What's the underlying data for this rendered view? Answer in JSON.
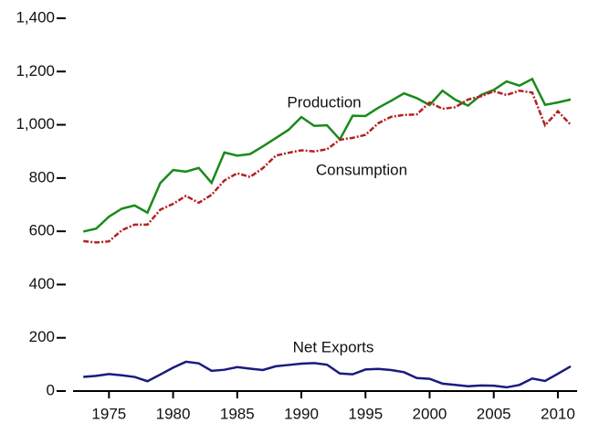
{
  "chart_data": {
    "type": "line",
    "x": [
      1973,
      1974,
      1975,
      1976,
      1977,
      1978,
      1979,
      1980,
      1981,
      1982,
      1983,
      1984,
      1985,
      1986,
      1987,
      1988,
      1989,
      1990,
      1991,
      1992,
      1993,
      1994,
      1995,
      1996,
      1997,
      1998,
      1999,
      2000,
      2001,
      2002,
      2003,
      2004,
      2005,
      2006,
      2007,
      2008,
      2009,
      2010,
      2011
    ],
    "series": [
      {
        "name": "Production",
        "color": "#1a8a1a",
        "dashed": false,
        "values": [
          599,
          610,
          655,
          685,
          697,
          670,
          781,
          830,
          824,
          838,
          782,
          896,
          884,
          890,
          919,
          950,
          981,
          1029,
          996,
          998,
          945,
          1034,
          1033,
          1064,
          1090,
          1118,
          1100,
          1074,
          1128,
          1094,
          1072,
          1112,
          1131,
          1163,
          1147,
          1172,
          1075,
          1084,
          1095
        ]
      },
      {
        "name": "Consumption",
        "color": "#b22222",
        "dashed": true,
        "values": [
          563,
          558,
          562,
          604,
          625,
          625,
          681,
          703,
          733,
          707,
          737,
          791,
          818,
          804,
          837,
          884,
          895,
          904,
          900,
          908,
          944,
          951,
          962,
          1006,
          1030,
          1037,
          1039,
          1084,
          1060,
          1066,
          1095,
          1107,
          1126,
          1112,
          1128,
          1121,
          998,
          1051,
          1000
        ]
      },
      {
        "name": "Net Exports",
        "color": "#1a1a80",
        "dashed": false,
        "values": [
          53,
          57,
          64,
          59,
          53,
          37,
          62,
          88,
          110,
          104,
          76,
          80,
          90,
          84,
          79,
          93,
          98,
          103,
          105,
          99,
          66,
          63,
          81,
          83,
          79,
          71,
          49,
          46,
          28,
          23,
          18,
          21,
          20,
          14,
          23,
          47,
          38,
          65,
          93
        ]
      }
    ],
    "xlim": [
      1972.2,
      2011.5
    ],
    "xticks": [
      1975,
      1980,
      1985,
      1990,
      1995,
      2000,
      2005,
      2010
    ],
    "ylim": [
      0,
      1400
    ],
    "yticks": [
      0,
      200,
      400,
      600,
      800,
      {
        "value": 1000,
        "label": "1,000"
      },
      {
        "value": 1200,
        "label": "1,200"
      },
      {
        "value": 1400,
        "label": "1,400"
      }
    ]
  }
}
